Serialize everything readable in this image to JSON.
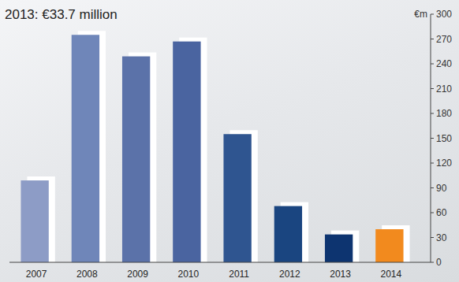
{
  "chart_data": {
    "type": "bar",
    "title": "2013: €33.7 million",
    "y_label": "€m",
    "categories": [
      "2007",
      "2008",
      "2009",
      "2010",
      "2011",
      "2012",
      "2013",
      "2014"
    ],
    "values": [
      99,
      275,
      249,
      267,
      155,
      68,
      33.7,
      40
    ],
    "colors": [
      "#8d9cc6",
      "#6f86b9",
      "#5b72a9",
      "#4a64a0",
      "#2f5590",
      "#1a4580",
      "#0d3470",
      "#f28a1e"
    ],
    "ylim": [
      0,
      300
    ],
    "yticks": [
      0,
      30,
      60,
      90,
      120,
      150,
      180,
      210,
      240,
      270,
      300
    ],
    "grid": false
  }
}
